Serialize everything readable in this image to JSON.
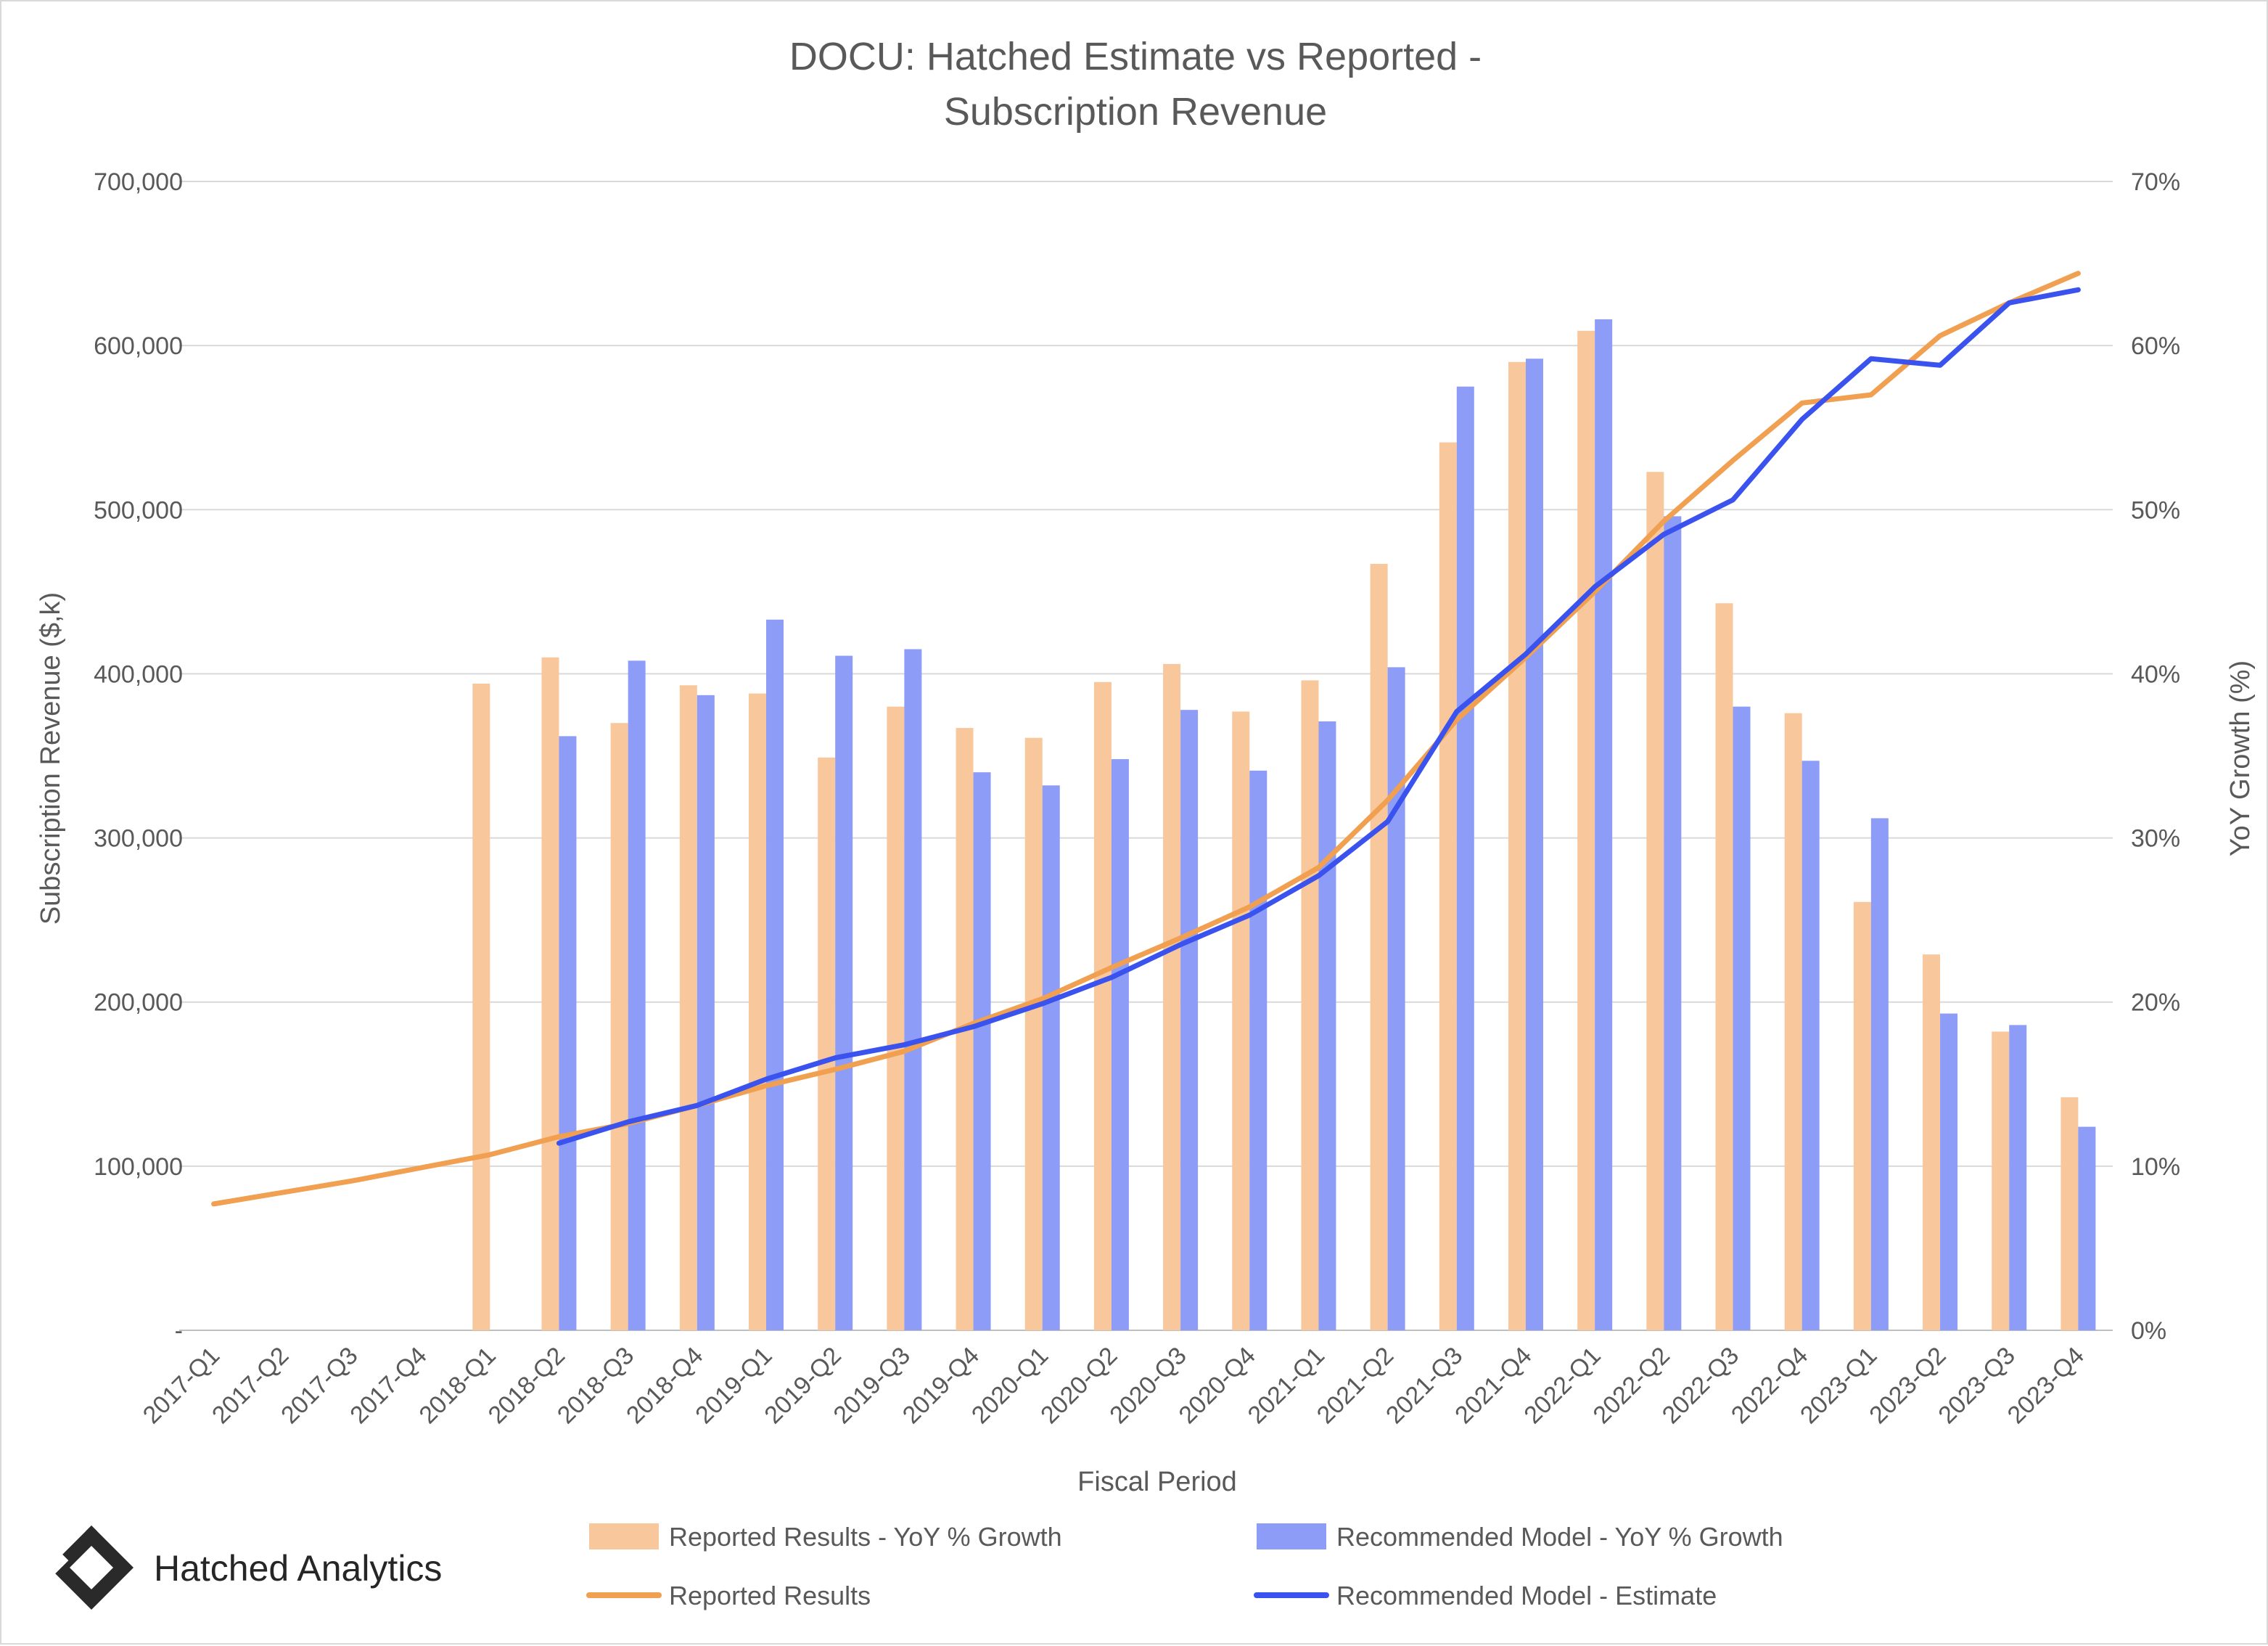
{
  "brand": {
    "name": "Hatched Analytics",
    "logo_icon": "hatched-diamond-logo-icon"
  },
  "colors": {
    "reported_bar": "#f8c79c",
    "model_bar": "#8c9cf7",
    "reported_line": "#f0a050",
    "model_line": "#3a52ee",
    "grid": "#d9d9d9",
    "text": "#595959"
  },
  "chart_data": {
    "type": "bar",
    "title_line1": "DOCU: Hatched Estimate vs Reported -",
    "title_line2": "Subscription Revenue",
    "xlabel": "Fiscal Period",
    "ylabel": "Subscription Revenue ($,k)",
    "y2label": "YoY Growth (%)",
    "ylim": [
      0,
      700000
    ],
    "y2lim": [
      0,
      70
    ],
    "y_ticks": [
      "-",
      "100,000",
      "200,000",
      "300,000",
      "400,000",
      "500,000",
      "600,000",
      "700,000"
    ],
    "y2_ticks": [
      "0%",
      "10%",
      "20%",
      "30%",
      "40%",
      "50%",
      "60%",
      "70%"
    ],
    "grid": true,
    "legend_position": "bottom",
    "categories": [
      "2017-Q1",
      "2017-Q2",
      "2017-Q3",
      "2017-Q4",
      "2018-Q1",
      "2018-Q2",
      "2018-Q3",
      "2018-Q4",
      "2019-Q1",
      "2019-Q2",
      "2019-Q3",
      "2019-Q4",
      "2020-Q1",
      "2020-Q2",
      "2020-Q3",
      "2020-Q4",
      "2021-Q1",
      "2021-Q2",
      "2021-Q3",
      "2021-Q4",
      "2022-Q1",
      "2022-Q2",
      "2022-Q3",
      "2022-Q4",
      "2023-Q1",
      "2023-Q2",
      "2023-Q3",
      "2023-Q4"
    ],
    "series": [
      {
        "name": "Reported Results - YoY % Growth",
        "kind": "bar",
        "axis": "right",
        "values": [
          null,
          null,
          null,
          null,
          39.4,
          41.0,
          37.0,
          39.3,
          38.8,
          34.9,
          38.0,
          36.7,
          36.1,
          39.5,
          40.6,
          37.7,
          39.6,
          46.7,
          54.1,
          59.0,
          60.9,
          52.3,
          44.3,
          37.6,
          26.1,
          22.9,
          18.2,
          14.2
        ]
      },
      {
        "name": "Recommended Model - YoY % Growth",
        "kind": "bar",
        "axis": "right",
        "values": [
          null,
          null,
          null,
          null,
          null,
          36.2,
          40.8,
          38.7,
          43.3,
          41.1,
          41.5,
          34.0,
          33.2,
          34.8,
          37.8,
          34.1,
          37.1,
          40.4,
          57.5,
          59.2,
          61.6,
          49.6,
          38.0,
          34.7,
          31.2,
          19.3,
          18.6,
          12.4
        ]
      },
      {
        "name": "Reported Results",
        "kind": "line",
        "axis": "left",
        "values": [
          77000,
          84000,
          91000,
          99000,
          107000,
          118000,
          126000,
          137000,
          149000,
          159000,
          170000,
          187000,
          202000,
          221000,
          239000,
          258000,
          282000,
          323000,
          372000,
          410000,
          450000,
          493000,
          530000,
          565000,
          570000,
          606000,
          626000,
          644000
        ]
      },
      {
        "name": "Recommended Model - Estimate",
        "kind": "line",
        "axis": "left",
        "values": [
          null,
          null,
          null,
          null,
          null,
          114000,
          127000,
          137000,
          153000,
          166000,
          174000,
          185000,
          199000,
          215000,
          235000,
          253000,
          277000,
          310000,
          377000,
          412000,
          453000,
          485000,
          506000,
          555000,
          592000,
          588000,
          626000,
          634000
        ]
      }
    ]
  }
}
